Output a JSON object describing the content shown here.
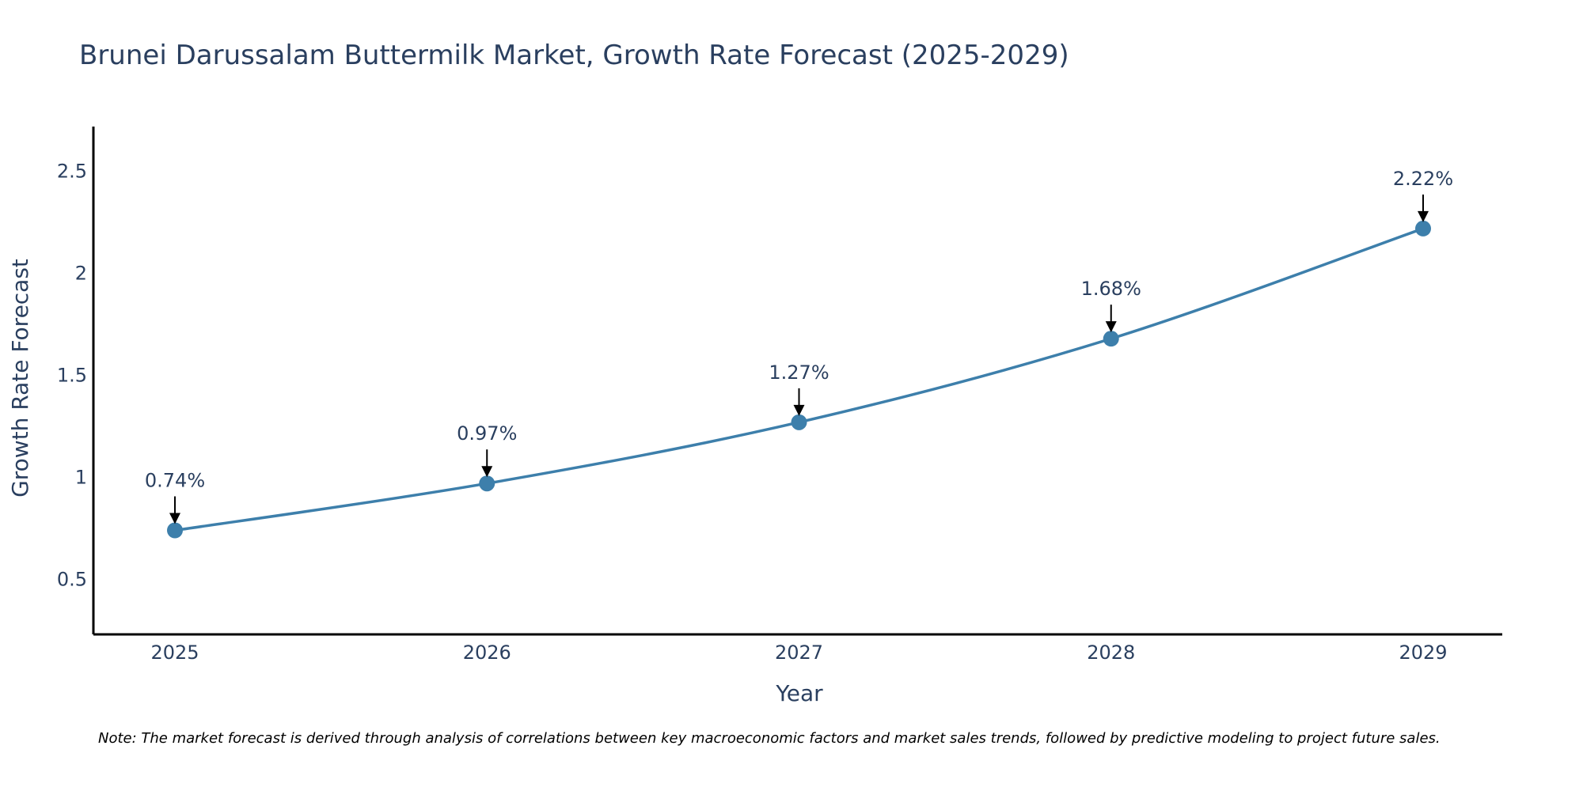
{
  "chart_data": {
    "type": "line",
    "title": "Brunei Darussalam Buttermilk Market, Growth Rate Forecast (2025-2029)",
    "xlabel": "Year",
    "ylabel": "Growth Rate Forecast",
    "categories": [
      "2025",
      "2026",
      "2027",
      "2028",
      "2029"
    ],
    "values": [
      0.74,
      0.97,
      1.27,
      1.68,
      2.22
    ],
    "data_labels": [
      "0.74%",
      "0.97%",
      "1.27%",
      "1.68%",
      "2.22%"
    ],
    "y_ticks": [
      0.5,
      1,
      1.5,
      2,
      2.5
    ],
    "y_tick_labels": [
      "0.5",
      "1",
      "1.5",
      "2",
      "2.5"
    ],
    "ylim": [
      0.23,
      2.72
    ],
    "grid": false,
    "line_color": "#3d7fab",
    "marker_color": "#3d7fab",
    "note": "Note: The market forecast is derived through analysis of correlations between key macroeconomic factors and market sales trends, followed by predictive modeling to project future sales."
  }
}
